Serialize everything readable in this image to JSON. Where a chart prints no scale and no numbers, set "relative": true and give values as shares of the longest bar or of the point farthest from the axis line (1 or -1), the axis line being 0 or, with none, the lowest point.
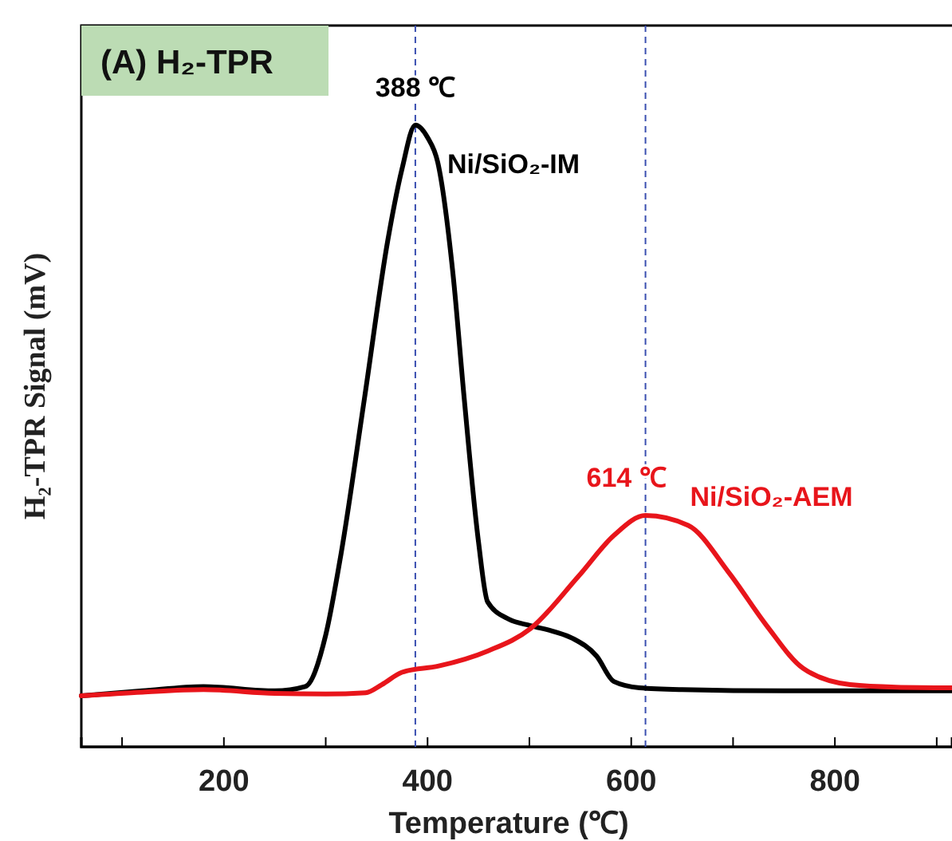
{
  "chart_data": {
    "type": "line",
    "title": "(A) H₂-TPR",
    "xlabel": "Temperature (℃)",
    "ylabel": "H₂-TPR Signal (mV)",
    "relative": true,
    "legend": false,
    "grid": false,
    "marker": "none",
    "line_style": "solid",
    "xlim": [
      60,
      915
    ],
    "xticks": [
      {
        "value": 100,
        "label": null
      },
      200,
      {
        "value": 300,
        "label": null
      },
      400,
      {
        "value": 500,
        "label": null
      },
      600,
      {
        "value": 700,
        "label": null
      },
      800,
      {
        "value": 900,
        "label": null
      }
    ],
    "ref_lines": [
      {
        "axis": "x",
        "value": 388,
        "label": "388 ℃",
        "color": "#3a4fb0",
        "line_style": "dashed"
      },
      {
        "axis": "x",
        "value": 614,
        "label": "614 ℃",
        "color": "#3a4fb0",
        "line_style": "dashed"
      }
    ],
    "series": [
      {
        "name": "Ni/SiO₂-IM",
        "color": "#000000",
        "x": [
          60,
          120,
          180,
          250,
          280,
          300,
          315,
          338,
          361,
          375,
          388,
          400,
          410,
          425,
          436,
          450,
          459,
          480,
          501,
          525,
          543,
          566,
          583,
          608,
          650,
          750,
          850,
          915
        ],
        "values": [
          0.082,
          0.09,
          0.097,
          0.09,
          0.097,
          0.18,
          0.31,
          0.56,
          0.815,
          0.93,
          1.0,
          0.98,
          0.94,
          0.76,
          0.56,
          0.33,
          0.233,
          0.205,
          0.195,
          0.185,
          0.174,
          0.146,
          0.105,
          0.095,
          0.092,
          0.09,
          0.09,
          0.09
        ]
      },
      {
        "name": "Ni/SiO₂-AEM",
        "color": "#e8151b",
        "x": [
          60,
          120,
          180,
          250,
          300,
          339,
          355,
          375,
          411,
          459,
          501,
          548,
          583,
          614,
          656,
          696,
          733,
          769,
          815,
          860,
          915
        ],
        "values": [
          0.082,
          0.088,
          0.092,
          0.086,
          0.085,
          0.087,
          0.1,
          0.12,
          0.13,
          0.154,
          0.19,
          0.274,
          0.34,
          0.372,
          0.356,
          0.28,
          0.195,
          0.126,
          0.1,
          0.096,
          0.095
        ]
      }
    ]
  }
}
